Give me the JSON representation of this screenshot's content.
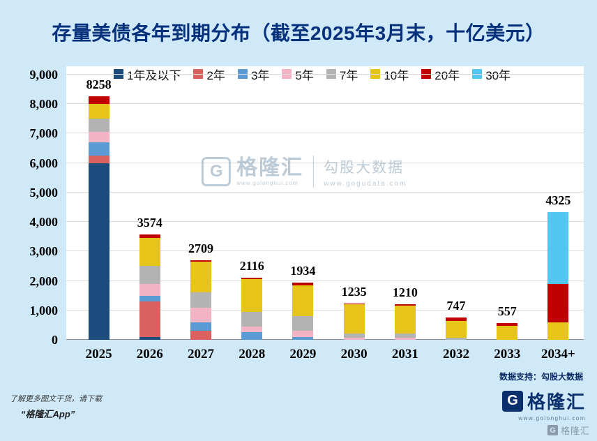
{
  "page": {
    "title": "存量美债各年到期分布（截至2025年3月末，十亿美元）",
    "data_support": "数据支持：勾股大数据",
    "watermark": {
      "g": "G",
      "brand": "格隆汇",
      "brand_url": "www.golonghui.com",
      "partner": "勾股大数据",
      "partner_url": "www.gogudata.com"
    },
    "footer": {
      "promo_line1": "了解更多图文干货，请下载",
      "promo_line2": "“格隆汇App”",
      "brand_g": "G",
      "brand_name": "格隆汇",
      "brand_url": "www.golonghui.com",
      "corner_g": "G",
      "corner_brand": "格隆汇"
    }
  },
  "chart_data": {
    "type": "bar",
    "stacked": true,
    "title": "存量美债各年到期分布（截至2025年3月末，十亿美元）",
    "unit": "十亿美元",
    "legend_position": "top",
    "grid": true,
    "ylim": [
      0,
      9000
    ],
    "ytick_step": 1000,
    "yticks": [
      "0",
      "1,000",
      "2,000",
      "3,000",
      "4,000",
      "5,000",
      "6,000",
      "7,000",
      "8,000",
      "9,000"
    ],
    "categories": [
      "2025",
      "2026",
      "2027",
      "2028",
      "2029",
      "2030",
      "2031",
      "2032",
      "2033",
      "2034+"
    ],
    "totals": [
      8258,
      3574,
      2709,
      2116,
      1934,
      1235,
      1210,
      747,
      557,
      4325
    ],
    "series": [
      {
        "name": "1年及以下",
        "color": "#1c4b7d",
        "values": [
          6000,
          100,
          0,
          0,
          0,
          0,
          0,
          0,
          0,
          0
        ]
      },
      {
        "name": "2年",
        "color": "#d9615f",
        "values": [
          250,
          1200,
          300,
          0,
          0,
          0,
          0,
          0,
          0,
          0
        ]
      },
      {
        "name": "3年",
        "color": "#5b9bd5",
        "values": [
          450,
          200,
          300,
          250,
          100,
          0,
          0,
          0,
          0,
          0
        ]
      },
      {
        "name": "5年",
        "color": "#f2b4c5",
        "values": [
          350,
          400,
          500,
          200,
          200,
          60,
          60,
          0,
          0,
          0
        ]
      },
      {
        "name": "7年",
        "color": "#b3b3b3",
        "values": [
          450,
          600,
          500,
          500,
          500,
          150,
          150,
          60,
          0,
          0
        ]
      },
      {
        "name": "10年",
        "color": "#e6c419",
        "values": [
          500,
          950,
          1050,
          1100,
          1050,
          990,
          940,
          590,
          480,
          600
        ]
      },
      {
        "name": "20年",
        "color": "#c00000",
        "values": [
          258,
          124,
          59,
          66,
          84,
          35,
          60,
          97,
          77,
          1300
        ]
      },
      {
        "name": "30年",
        "color": "#53c6f1",
        "values": [
          0,
          0,
          0,
          0,
          0,
          0,
          0,
          0,
          0,
          2425
        ]
      }
    ]
  }
}
